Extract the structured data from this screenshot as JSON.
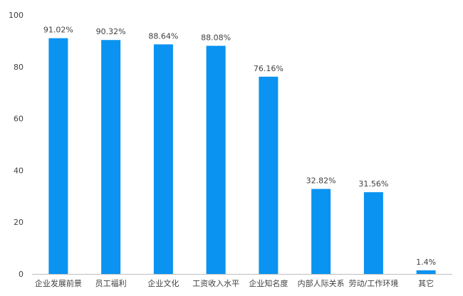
{
  "chart_data": {
    "type": "bar",
    "categories": [
      "企业发展前景",
      "员工福利",
      "企业文化",
      "工资收入水平",
      "企业知名度",
      "内部人际关系",
      "劳动/工作环境",
      "其它"
    ],
    "values": [
      91.02,
      90.32,
      88.64,
      88.08,
      76.16,
      32.82,
      31.56,
      1.4
    ],
    "data_labels": [
      "91.02%",
      "90.32%",
      "88.64%",
      "88.08%",
      "76.16%",
      "32.82%",
      "31.56%",
      "1.4%"
    ],
    "y_ticks": [
      0,
      20,
      40,
      60,
      80,
      100
    ],
    "ylim": [
      0,
      100
    ],
    "grid": false,
    "legend": "none",
    "colors": {
      "bar": "#0A93F0",
      "text": "#404040",
      "axis": "#BFBFBF"
    }
  }
}
